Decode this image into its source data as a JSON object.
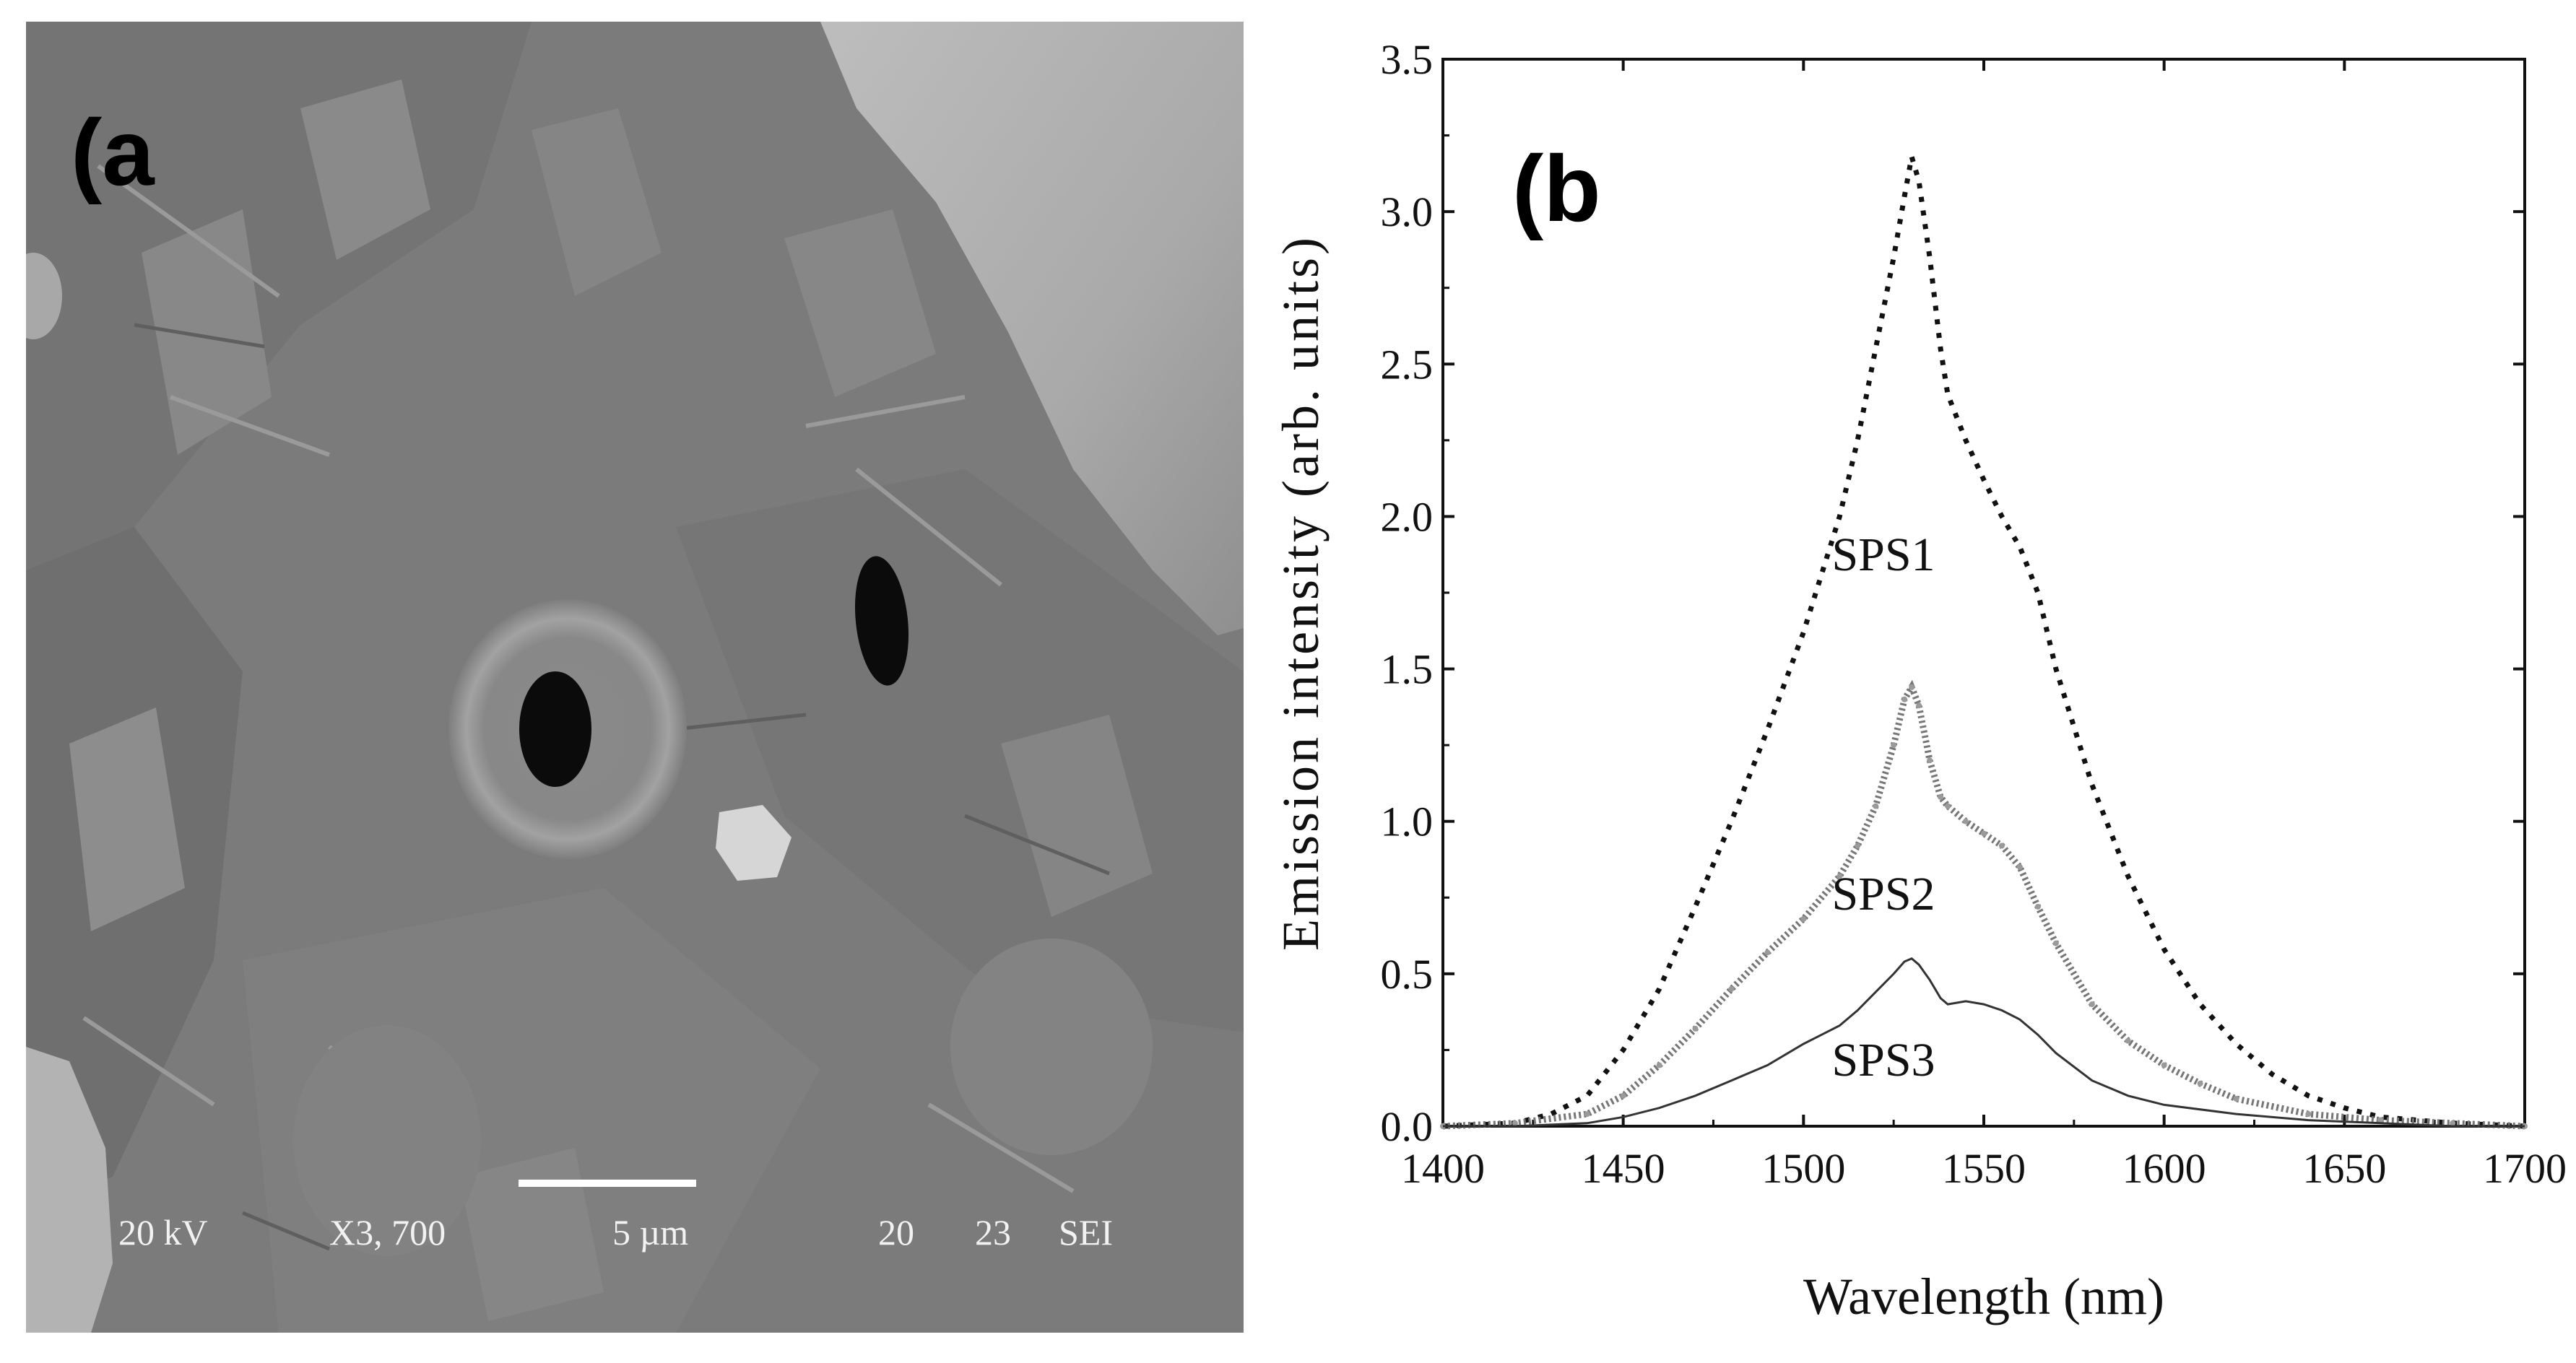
{
  "panel_a": {
    "label": "(a",
    "info_bar": {
      "voltage": "20 kV",
      "magnification": "X3,  700",
      "scale_label": "5 µm",
      "field_1": "20",
      "field_2": "23",
      "detector": "SEI"
    }
  },
  "panel_b": {
    "label": "(b"
  },
  "chart_data": {
    "type": "line",
    "xlabel": "Wavelength (nm)",
    "ylabel": "Emission intensity (arb. units)",
    "xlim": [
      1400,
      1700
    ],
    "ylim": [
      0.0,
      3.5
    ],
    "xticks": [
      "1400",
      "1450",
      "1500",
      "1550",
      "1600",
      "1650",
      "1700"
    ],
    "yticks": [
      "0.0",
      "0.5",
      "1.0",
      "1.5",
      "2.0",
      "2.5",
      "3.0",
      "3.5"
    ],
    "grid": false,
    "series": [
      {
        "name": "SPS1",
        "style": "dotted",
        "color": "#111111",
        "x": [
          1400,
          1420,
          1430,
          1440,
          1450,
          1460,
          1470,
          1480,
          1490,
          1500,
          1510,
          1515,
          1520,
          1525,
          1528,
          1530,
          1532,
          1535,
          1538,
          1540,
          1545,
          1550,
          1555,
          1560,
          1565,
          1570,
          1580,
          1590,
          1600,
          1610,
          1620,
          1630,
          1640,
          1650,
          1660,
          1680,
          1700
        ],
        "y": [
          0.0,
          0.01,
          0.04,
          0.1,
          0.25,
          0.45,
          0.72,
          1.0,
          1.3,
          1.62,
          2.0,
          2.25,
          2.55,
          2.85,
          3.05,
          3.18,
          3.1,
          2.85,
          2.55,
          2.4,
          2.25,
          2.12,
          2.0,
          1.9,
          1.75,
          1.5,
          1.12,
          0.82,
          0.58,
          0.4,
          0.27,
          0.17,
          0.1,
          0.06,
          0.03,
          0.01,
          0.0
        ]
      },
      {
        "name": "SPS2",
        "style": "marker-line",
        "color": "#777777",
        "x": [
          1400,
          1420,
          1440,
          1450,
          1460,
          1470,
          1480,
          1490,
          1500,
          1510,
          1515,
          1520,
          1525,
          1528,
          1530,
          1532,
          1535,
          1538,
          1540,
          1545,
          1550,
          1555,
          1560,
          1565,
          1570,
          1580,
          1590,
          1600,
          1610,
          1620,
          1640,
          1660,
          1680,
          1700
        ],
        "y": [
          0.0,
          0.01,
          0.04,
          0.1,
          0.2,
          0.32,
          0.45,
          0.57,
          0.68,
          0.82,
          0.92,
          1.05,
          1.25,
          1.4,
          1.44,
          1.38,
          1.2,
          1.08,
          1.05,
          1.0,
          0.96,
          0.92,
          0.85,
          0.72,
          0.6,
          0.4,
          0.28,
          0.2,
          0.14,
          0.09,
          0.04,
          0.02,
          0.01,
          0.0
        ]
      },
      {
        "name": "SPS3",
        "style": "solid",
        "color": "#333333",
        "x": [
          1400,
          1420,
          1440,
          1450,
          1460,
          1470,
          1480,
          1490,
          1500,
          1505,
          1510,
          1515,
          1520,
          1525,
          1528,
          1530,
          1532,
          1535,
          1538,
          1540,
          1545,
          1550,
          1555,
          1560,
          1565,
          1570,
          1580,
          1590,
          1600,
          1620,
          1640,
          1660,
          1680,
          1700
        ],
        "y": [
          0.0,
          0.0,
          0.01,
          0.03,
          0.06,
          0.1,
          0.15,
          0.2,
          0.27,
          0.3,
          0.33,
          0.38,
          0.44,
          0.5,
          0.54,
          0.55,
          0.53,
          0.48,
          0.42,
          0.4,
          0.41,
          0.4,
          0.38,
          0.35,
          0.3,
          0.24,
          0.15,
          0.1,
          0.07,
          0.04,
          0.02,
          0.01,
          0.0,
          0.0
        ]
      }
    ],
    "annotations": [
      "SPS1",
      "SPS2",
      "SPS3"
    ]
  }
}
